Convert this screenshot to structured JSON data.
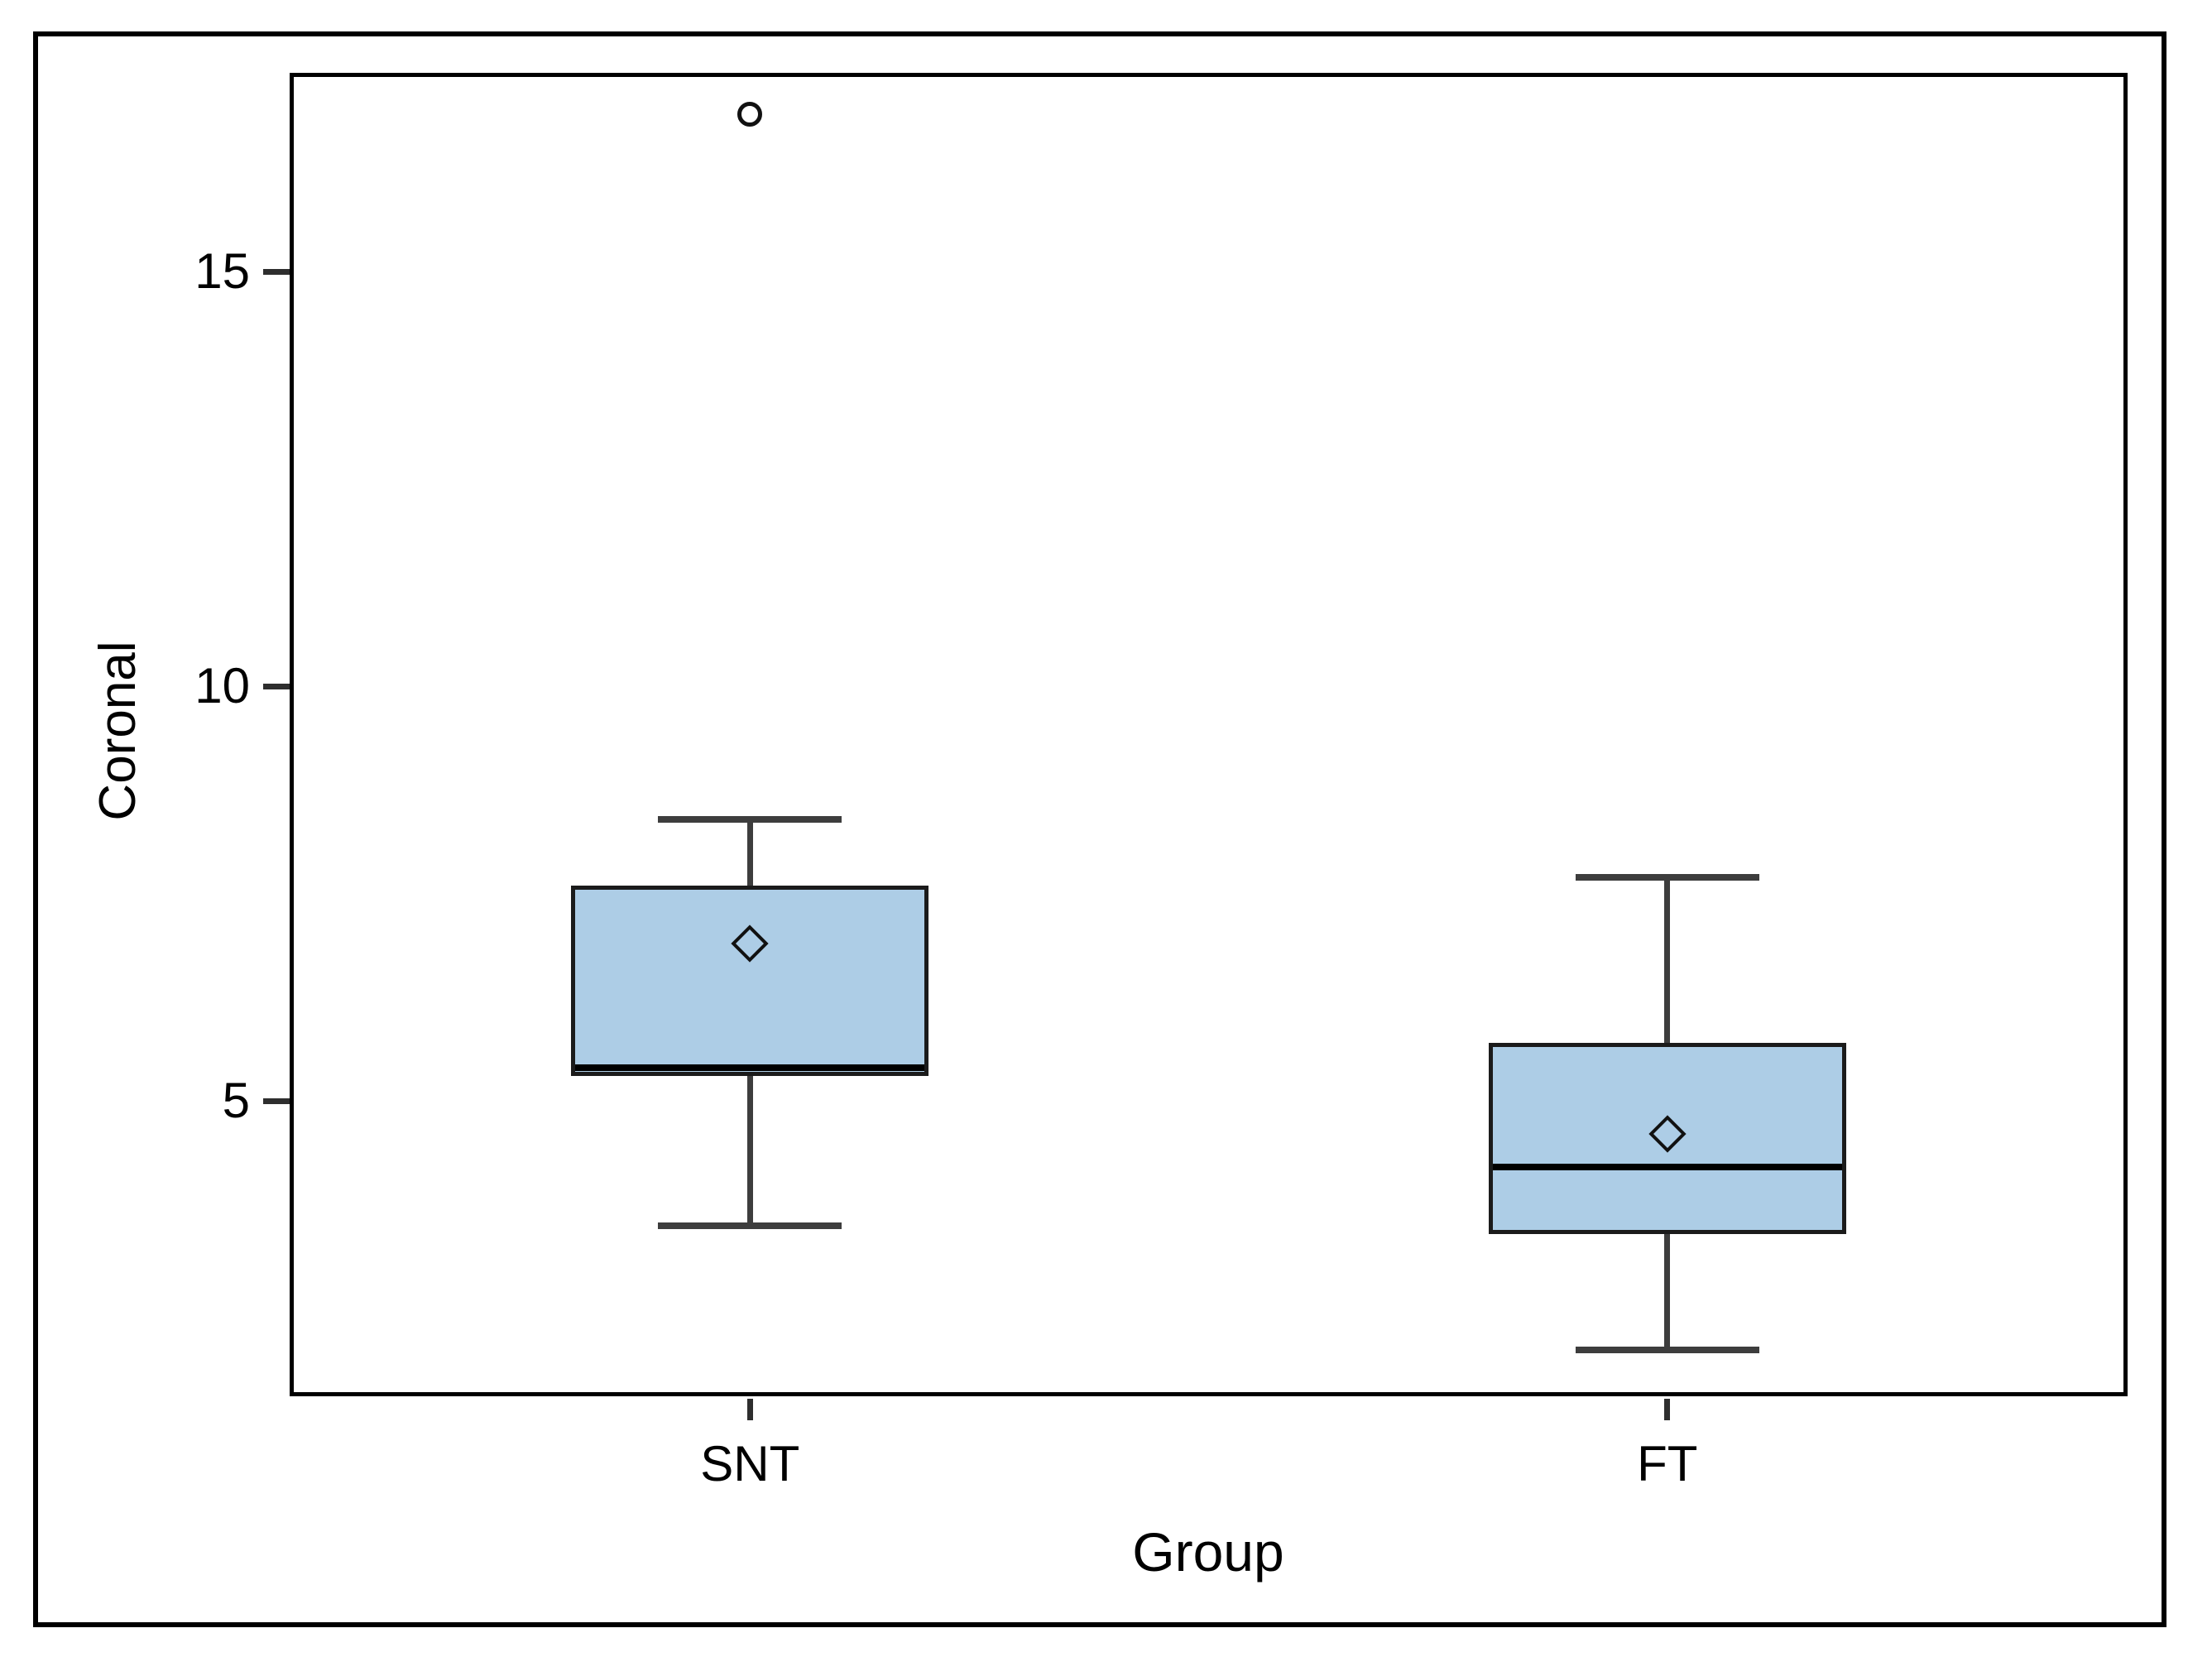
{
  "chart_data": {
    "type": "boxplot",
    "title": "",
    "xlabel": "Group",
    "ylabel": "Coronal",
    "categories": [
      "SNT",
      "FT"
    ],
    "y_axis": {
      "min": 1.46,
      "max": 17.38,
      "ticks": [
        15,
        10,
        5
      ],
      "tick_labels": [
        "15",
        "10",
        "5"
      ]
    },
    "grid": false,
    "legend": null,
    "series": [
      {
        "group": "SNT",
        "whisker_low": 3.5,
        "q1": 5.3,
        "median": 5.4,
        "q3": 7.6,
        "whisker_high": 8.4,
        "mean": 6.9,
        "outliers": [
          16.9
        ]
      },
      {
        "group": "FT",
        "whisker_low": 2.0,
        "q1": 3.4,
        "median": 4.2,
        "q3": 5.7,
        "whisker_high": 7.7,
        "mean": 4.6,
        "outliers": []
      }
    ]
  },
  "colors": {
    "background": "#FFFFFF",
    "frame": "#000000",
    "box_fill": "#ADCDE6",
    "box_border": "#1B1B1B",
    "median": "#000000",
    "whisker": "#3D3D3D",
    "tick": "#2E2E2E",
    "marker": "#111111"
  }
}
